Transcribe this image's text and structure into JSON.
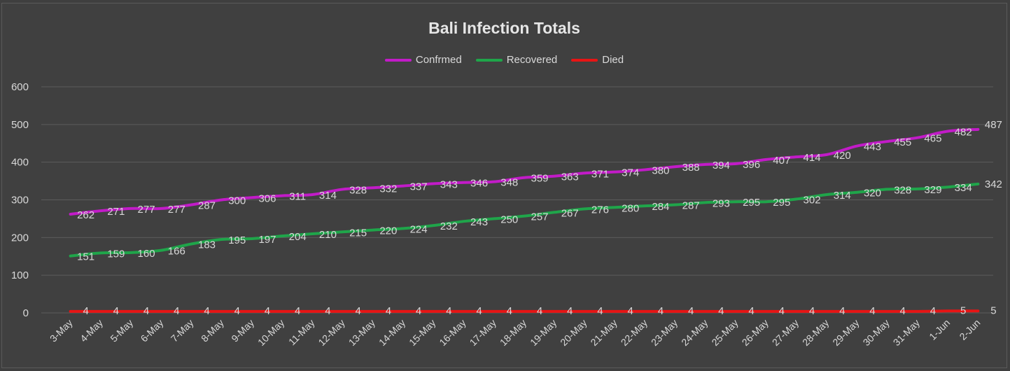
{
  "chart_data": {
    "type": "line",
    "title": "Bali Infection Totals",
    "xlabel": "",
    "ylabel": "",
    "ylim": [
      0,
      600
    ],
    "yticks": [
      0,
      100,
      200,
      300,
      400,
      500,
      600
    ],
    "grid": "horizontal",
    "legend_position": "top",
    "categories": [
      "3-May",
      "4-May",
      "5-May",
      "6-May",
      "7-May",
      "8-May",
      "9-May",
      "10-May",
      "11-May",
      "12-May",
      "13-May",
      "14-May",
      "15-May",
      "16-May",
      "17-May",
      "18-May",
      "19-May",
      "20-May",
      "21-May",
      "22-May",
      "23-May",
      "24-May",
      "25-May",
      "26-May",
      "27-May",
      "28-May",
      "29-May",
      "30-May",
      "31-May",
      "1-Jun",
      "2-Jun"
    ],
    "series": [
      {
        "name": "Confrmed",
        "color": "#c21bc8",
        "values": [
          262,
          271,
          277,
          277,
          287,
          300,
          306,
          311,
          314,
          328,
          332,
          337,
          343,
          346,
          348,
          359,
          363,
          371,
          374,
          380,
          388,
          394,
          396,
          407,
          414,
          420,
          443,
          455,
          465,
          482,
          487
        ]
      },
      {
        "name": "Recovered",
        "color": "#1fa54a",
        "values": [
          151,
          159,
          160,
          166,
          183,
          195,
          197,
          204,
          210,
          215,
          220,
          224,
          232,
          243,
          250,
          257,
          267,
          276,
          280,
          284,
          287,
          293,
          295,
          295,
          302,
          314,
          320,
          328,
          329,
          334,
          342
        ]
      },
      {
        "name": "Died",
        "color": "#e81414",
        "values": [
          4,
          4,
          4,
          4,
          4,
          4,
          4,
          4,
          4,
          4,
          4,
          4,
          4,
          4,
          4,
          4,
          4,
          4,
          4,
          4,
          4,
          4,
          4,
          4,
          4,
          4,
          4,
          4,
          4,
          5,
          5
        ]
      }
    ]
  }
}
